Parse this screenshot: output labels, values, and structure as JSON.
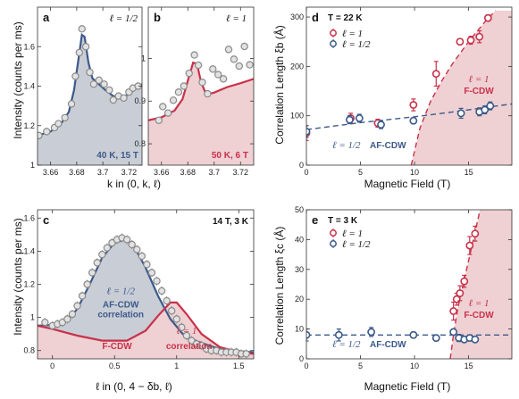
{
  "colors": {
    "blue": "#3c5a8a",
    "red": "#c8324a",
    "blueFill": "#c9cdd6",
    "redFill": "#efd0d3",
    "marker": "#8a8a8a",
    "markerFill": "#e2e2e2"
  },
  "panels": {
    "a": {
      "label": "a",
      "ell": "ℓ = 1/2",
      "cond": "40 K, 15 T"
    },
    "b": {
      "label": "b",
      "ell": "ℓ = 1",
      "cond": "50 K, 6 T"
    },
    "c": {
      "label": "c",
      "cond": "14 T, 3 K",
      "blueEll": "ℓ = 1/2",
      "blueText1": "AF-CDW",
      "blueText2": "correlation",
      "redEll": "ℓ = 1",
      "redText1": "F-CDW",
      "redText2": "correlation"
    },
    "d": {
      "label": "d",
      "cond": "T = 22 K",
      "leg1": "ℓ = 1",
      "leg2": "ℓ = 1/2",
      "redEll": "ℓ = 1",
      "redText": "F-CDW",
      "blueEll": "ℓ = 1/2",
      "blueText": "AF-CDW"
    },
    "e": {
      "label": "e",
      "cond": "T = 3 K",
      "leg1": "ℓ = 1",
      "leg2": "ℓ = 1/2",
      "redEll": "ℓ = 1",
      "redText": "F-CDW",
      "blueEll": "ℓ = 1/2",
      "blueText": "AF-CDW"
    }
  },
  "labels": {
    "intensityTop": "Intensity (counts per ms)",
    "intensityBottom": "Intensity (counts per ms)",
    "xlabelTop": "k in (0, k, ℓ)",
    "xlabelBottom": "ℓ in (0, 4 − δb, ℓ)",
    "corrB": "Correlation Length ξb (Å)",
    "corrC": "Correlation Length ξc (Å)",
    "magField": "Magnetic Field (T)"
  },
  "chart_data": [
    {
      "id": "a",
      "type": "line",
      "xlim": [
        3.65,
        3.73
      ],
      "ylim": [
        1.0,
        1.8
      ],
      "xticks": [
        "3.66",
        "3.68",
        "3.7",
        "3.72"
      ],
      "yticks": [
        "1",
        "1.2",
        "1.4",
        "1.6"
      ],
      "points": [
        [
          3.651,
          1.15
        ],
        [
          3.657,
          1.17
        ],
        [
          3.663,
          1.19
        ],
        [
          3.666,
          1.21
        ],
        [
          3.671,
          1.24
        ],
        [
          3.676,
          1.31
        ],
        [
          3.679,
          1.45
        ],
        [
          3.682,
          1.57
        ],
        [
          3.684,
          1.69
        ],
        [
          3.687,
          1.6
        ],
        [
          3.69,
          1.47
        ],
        [
          3.693,
          1.41
        ],
        [
          3.697,
          1.43
        ],
        [
          3.701,
          1.41
        ],
        [
          3.705,
          1.38
        ],
        [
          3.708,
          1.33
        ],
        [
          3.712,
          1.35
        ],
        [
          3.716,
          1.34
        ],
        [
          3.72,
          1.37
        ],
        [
          3.723,
          1.39
        ],
        [
          3.727,
          1.4
        ]
      ],
      "fit": [
        [
          3.65,
          1.15
        ],
        [
          3.66,
          1.17
        ],
        [
          3.668,
          1.21
        ],
        [
          3.674,
          1.27
        ],
        [
          3.678,
          1.38
        ],
        [
          3.681,
          1.52
        ],
        [
          3.684,
          1.66
        ],
        [
          3.686,
          1.65
        ],
        [
          3.689,
          1.52
        ],
        [
          3.692,
          1.44
        ],
        [
          3.697,
          1.41
        ],
        [
          3.702,
          1.38
        ],
        [
          3.708,
          1.35
        ],
        [
          3.714,
          1.34
        ],
        [
          3.72,
          1.36
        ],
        [
          3.73,
          1.41
        ]
      ]
    },
    {
      "id": "b",
      "type": "line",
      "xlim": [
        3.65,
        3.73
      ],
      "ylim": [
        0.75,
        1.12
      ],
      "xticks": [
        "3.66",
        "3.68",
        "3.7",
        "3.72"
      ],
      "yticks": [
        "0.8",
        "0.9",
        "1"
      ],
      "points": [
        [
          3.658,
          0.855
        ],
        [
          3.661,
          0.887
        ],
        [
          3.665,
          0.872
        ],
        [
          3.669,
          0.902
        ],
        [
          3.673,
          0.921
        ],
        [
          3.677,
          0.935
        ],
        [
          3.681,
          0.965
        ],
        [
          3.685,
          1.008
        ],
        [
          3.688,
          0.984
        ],
        [
          3.691,
          0.944
        ],
        [
          3.695,
          0.917
        ],
        [
          3.699,
          0.975
        ],
        [
          3.703,
          0.962
        ],
        [
          3.707,
          0.952
        ],
        [
          3.711,
          1.021
        ],
        [
          3.715,
          0.998
        ],
        [
          3.719,
          0.982
        ],
        [
          3.723,
          1.028
        ],
        [
          3.727,
          0.985
        ]
      ],
      "fit": [
        [
          3.65,
          0.855
        ],
        [
          3.66,
          0.862
        ],
        [
          3.67,
          0.878
        ],
        [
          3.676,
          0.905
        ],
        [
          3.68,
          0.948
        ],
        [
          3.684,
          0.99
        ],
        [
          3.687,
          0.987
        ],
        [
          3.69,
          0.945
        ],
        [
          3.694,
          0.915
        ],
        [
          3.7,
          0.92
        ],
        [
          3.71,
          0.933
        ],
        [
          3.72,
          0.942
        ],
        [
          3.73,
          0.952
        ]
      ]
    },
    {
      "id": "c",
      "type": "line",
      "xlim": [
        -0.12,
        1.62
      ],
      "ylim": [
        0.75,
        1.65
      ],
      "xticks": [
        "0",
        "0.5",
        "1",
        "1.5"
      ],
      "yticks": [
        "0.8",
        "1",
        "1.2",
        "1.4",
        "1.6"
      ],
      "points": [
        [
          -0.06,
          0.97
        ],
        [
          0.0,
          0.95
        ],
        [
          0.04,
          0.96
        ],
        [
          0.08,
          0.97
        ],
        [
          0.12,
          0.99
        ],
        [
          0.16,
          1.02
        ],
        [
          0.2,
          1.07
        ],
        [
          0.24,
          1.13
        ],
        [
          0.28,
          1.2
        ],
        [
          0.32,
          1.27
        ],
        [
          0.36,
          1.33
        ],
        [
          0.4,
          1.38
        ],
        [
          0.44,
          1.42
        ],
        [
          0.48,
          1.45
        ],
        [
          0.52,
          1.47
        ],
        [
          0.56,
          1.48
        ],
        [
          0.6,
          1.47
        ],
        [
          0.64,
          1.44
        ],
        [
          0.68,
          1.41
        ],
        [
          0.72,
          1.37
        ],
        [
          0.76,
          1.32
        ],
        [
          0.8,
          1.27
        ],
        [
          0.84,
          1.22
        ],
        [
          0.88,
          1.16
        ],
        [
          0.92,
          1.1
        ],
        [
          0.96,
          1.04
        ],
        [
          1.0,
          0.99
        ],
        [
          1.04,
          0.94
        ],
        [
          1.08,
          0.89
        ],
        [
          1.12,
          0.86
        ],
        [
          1.16,
          0.84
        ],
        [
          1.2,
          0.83
        ],
        [
          1.24,
          0.81
        ],
        [
          1.28,
          0.8
        ],
        [
          1.32,
          0.8
        ],
        [
          1.36,
          0.79
        ],
        [
          1.4,
          0.79
        ],
        [
          1.44,
          0.79
        ],
        [
          1.48,
          0.79
        ],
        [
          1.52,
          0.78
        ],
        [
          1.56,
          0.78
        ]
      ],
      "blueFit": [
        [
          -0.12,
          0.95
        ],
        [
          0.0,
          0.955
        ],
        [
          0.1,
          0.97
        ],
        [
          0.2,
          1.05
        ],
        [
          0.3,
          1.2
        ],
        [
          0.4,
          1.36
        ],
        [
          0.5,
          1.45
        ],
        [
          0.58,
          1.47
        ],
        [
          0.65,
          1.44
        ],
        [
          0.75,
          1.3
        ],
        [
          0.85,
          1.13
        ],
        [
          0.95,
          0.99
        ],
        [
          1.05,
          0.9
        ],
        [
          1.15,
          0.86
        ],
        [
          1.3,
          0.82
        ],
        [
          1.45,
          0.8
        ],
        [
          1.62,
          0.79
        ]
      ],
      "redFit": [
        [
          -0.12,
          0.95
        ],
        [
          0.0,
          0.93
        ],
        [
          0.2,
          0.89
        ],
        [
          0.4,
          0.86
        ],
        [
          0.6,
          0.86
        ],
        [
          0.75,
          0.92
        ],
        [
          0.85,
          1.01
        ],
        [
          0.95,
          1.09
        ],
        [
          1.0,
          1.09
        ],
        [
          1.08,
          1.02
        ],
        [
          1.2,
          0.9
        ],
        [
          1.35,
          0.82
        ],
        [
          1.5,
          0.79
        ],
        [
          1.62,
          0.78
        ]
      ]
    },
    {
      "id": "d",
      "type": "scatter",
      "xlim": [
        0,
        19
      ],
      "ylim": [
        0,
        320
      ],
      "xticks": [
        "0",
        "5",
        "10",
        "15"
      ],
      "yticks": [
        "0",
        "100",
        "200",
        "300"
      ],
      "series": [
        {
          "name": "ℓ = 1",
          "points": [
            [
              0,
              65,
              15
            ],
            [
              4.1,
              95,
              10
            ],
            [
              6.6,
              85,
              8
            ],
            [
              9.9,
              122,
              12
            ],
            [
              12.0,
              185,
              25
            ],
            [
              14.2,
              250,
              6
            ],
            [
              15.2,
              253,
              8
            ],
            [
              16.0,
              260,
              12
            ],
            [
              16.8,
              298,
              6
            ]
          ]
        },
        {
          "name": "ℓ = 1/2",
          "points": [
            [
              0,
              68,
              12
            ],
            [
              4.0,
              92,
              8
            ],
            [
              4.9,
              95,
              8
            ],
            [
              6.9,
              82,
              8
            ],
            [
              9.9,
              90,
              6
            ],
            [
              14.3,
              105,
              10
            ],
            [
              16.0,
              108,
              8
            ],
            [
              16.5,
              112,
              8
            ],
            [
              17.0,
              120,
              8
            ]
          ]
        }
      ],
      "redFit": [
        [
          9.7,
          0
        ],
        [
          10.5,
          75
        ],
        [
          11.5,
          130
        ],
        [
          12.5,
          170
        ],
        [
          13.5,
          205
        ],
        [
          15,
          250
        ],
        [
          16.5,
          290
        ],
        [
          17.5,
          313
        ]
      ],
      "blueFit": [
        [
          0,
          72
        ],
        [
          5,
          86
        ],
        [
          10,
          98
        ],
        [
          14,
          109
        ],
        [
          19,
          124
        ]
      ]
    },
    {
      "id": "e",
      "type": "scatter",
      "xlim": [
        0,
        19
      ],
      "ylim": [
        0,
        50
      ],
      "xticks": [
        "0",
        "5",
        "10",
        "15"
      ],
      "yticks": [
        "0",
        "10",
        "20",
        "30",
        "40",
        "50"
      ],
      "series": [
        {
          "name": "ℓ = 1",
          "points": [
            [
              13.6,
              16,
              3
            ],
            [
              13.9,
              20,
              2
            ],
            [
              14.2,
              22,
              2.5
            ],
            [
              14.6,
              26,
              2
            ],
            [
              15.1,
              38,
              3
            ],
            [
              15.6,
              42,
              2.5
            ]
          ]
        },
        {
          "name": "ℓ = 1/2",
          "points": [
            [
              0,
              8,
              2
            ],
            [
              3.0,
              8,
              2
            ],
            [
              6.0,
              9,
              1.5
            ],
            [
              9.9,
              8,
              1
            ],
            [
              12.0,
              7,
              1
            ],
            [
              13.6,
              9,
              1
            ],
            [
              14.1,
              7,
              1.2
            ],
            [
              14.6,
              6.5,
              1
            ],
            [
              15.1,
              7,
              1
            ],
            [
              15.6,
              6.5,
              1
            ]
          ]
        }
      ],
      "redFit": [
        [
          13.3,
          0
        ],
        [
          13.6,
          8
        ],
        [
          14.0,
          17
        ],
        [
          14.5,
          25
        ],
        [
          15.0,
          33
        ],
        [
          15.5,
          41
        ],
        [
          16.0,
          49
        ],
        [
          16.2,
          52
        ]
      ],
      "blueFit": [
        [
          0,
          8
        ],
        [
          19,
          8
        ]
      ]
    }
  ]
}
